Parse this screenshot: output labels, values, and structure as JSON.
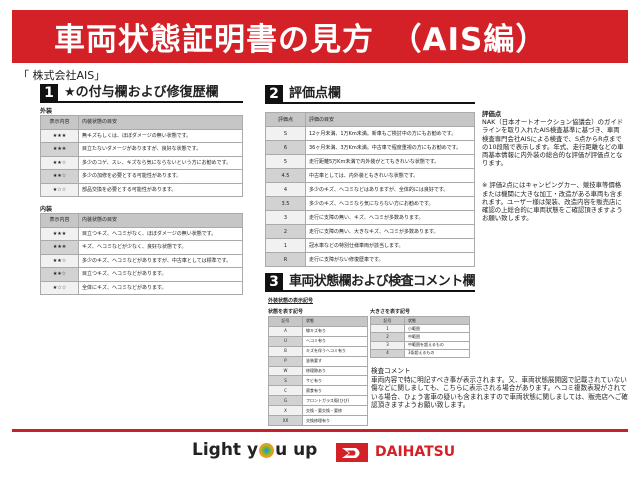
{
  "header": {
    "title": "車両状態証明書の見方　（AIS編）"
  },
  "company": "「 株式会社AIS」",
  "section1": {
    "num": "1",
    "title": "★の付与欄および修復歴欄",
    "exterior": {
      "label": "外装",
      "headers": [
        "表示内容",
        "内装状態の目安"
      ],
      "rows": [
        [
          "★★★",
          "無キズもしくは、ほぼダメージの無い状態です。"
        ],
        [
          "★★✬",
          "目立たないダメージがありますが、良好な状態です。"
        ],
        [
          "★★☆",
          "多少のコゲ、スレ、キズなら気にならないという方にお勧めです。"
        ],
        [
          "★✬☆",
          "多少の加修を必要とする可能性があります。"
        ],
        [
          "★☆☆",
          "部品交換を必要とする可能性があります。"
        ]
      ]
    },
    "interior": {
      "label": "内装",
      "headers": [
        "表示内容",
        "内装状態の目安"
      ],
      "rows": [
        [
          "★★★",
          "目立つキズ、ヘコミがなく、ほぼダメージの無い状態です。"
        ],
        [
          "★★✬",
          "キズ、ヘコミなどが少なく、良好な状態です。"
        ],
        [
          "★★☆",
          "多少のキズ、ヘコミなどがありますが、中古車としては標準です。"
        ],
        [
          "★✬☆",
          "目立つキズ、ヘコミなどがあります。"
        ],
        [
          "★☆☆",
          "全体にキズ、ヘコミなどがあります。"
        ]
      ]
    }
  },
  "section2": {
    "num": "2",
    "title": "評価点欄",
    "headers": [
      "評価点",
      "評価の目安"
    ],
    "rows": [
      [
        "S",
        "12ヶ月未満、1万Km未満。新車もご検討中の方にもお勧めです。"
      ],
      [
        "6",
        "36ヶ月未満、3万Km未満。中古車で程度重視の方にもお勧めです。"
      ],
      [
        "5",
        "走行距離5万Km未満で内外装がとてもきれいな状態です。"
      ],
      [
        "4.5",
        "中古車としては、内外装ともきれいな状態です。"
      ],
      [
        "4",
        "多少のキズ、ヘコミなどはありますが、全体的には良好です。"
      ],
      [
        "3.5",
        "多少のキズ、ヘコミなら気にならない方にお勧めです。"
      ],
      [
        "3",
        "走行に支障の無い、キズ、ヘコミが多数あります。"
      ],
      [
        "2",
        "走行に支障の無い、大きなキズ、ヘコミが多数あります。"
      ],
      [
        "1",
        "冠水車などの特別仕様車両が該当します。"
      ],
      [
        "R",
        "走行に支障がない修復歴車です。"
      ]
    ],
    "note1_title": "評価点",
    "note1": "NAK（日本オートオークション協議会）のガイドラインを取り入れたAIS検査基準に基づき、車両検査専門会社AISによる検査で、S点からR点までの10段階で表示します。年式、走行距離などの車両基本情報に内外装の総合的な評価が評価点となります。",
    "note2": "※ 評価2点にはキャンピングカー、競技車等價格または機関に大きな加工・改造がある車両も含まれます。ユーザー様は架装、改造内容を販売店に確認の上総合的に車両状態をご確認頂きますようお願い致します。"
  },
  "section3": {
    "num": "3",
    "title": "車両状態欄および検査コメント欄",
    "sub": "外装状態の表示記号",
    "state": {
      "label": "状態を表す記号",
      "headers": [
        "記号",
        "状態"
      ],
      "rows": [
        [
          "A",
          "線キズ有り"
        ],
        [
          "U",
          "ヘコミ有り"
        ],
        [
          "B",
          "キズを伴うヘコミ有り"
        ],
        [
          "P",
          "塗装要す"
        ],
        [
          "W",
          "修理跡あり"
        ],
        [
          "S",
          "サビ有り"
        ],
        [
          "C",
          "腐食有り"
        ],
        [
          "G",
          "フロントガラス傷(ひび)"
        ],
        [
          "X",
          "交換・要交換・要修"
        ],
        [
          "XX",
          "交換修理有り"
        ]
      ]
    },
    "size": {
      "label": "大きさを表す記号",
      "headers": [
        "記号",
        "状態"
      ],
      "rows": [
        [
          "1",
          "小範囲"
        ],
        [
          "2",
          "中範囲"
        ],
        [
          "3",
          "中範囲を超えるもの"
        ],
        [
          "4",
          "3条超えるもの"
        ]
      ]
    },
    "comment_title": "検査コメント",
    "comment": "車両内容で特に明記すべき事が表示されます。又、車両状態展開図で記載されていない傷などに関しましても、こちらに表示される場合があります。ヘコミ複数表現がされている場合、ひょう害車の疑いも含まれますので車両状態に関しましては、販売店へご確認頂きますようお願い致します。"
  },
  "footer": {
    "slogan_left": "Light y",
    "slogan_right": "u up",
    "brand": "DAIHATSU"
  },
  "colors": {
    "brand_red": "#d42128"
  }
}
